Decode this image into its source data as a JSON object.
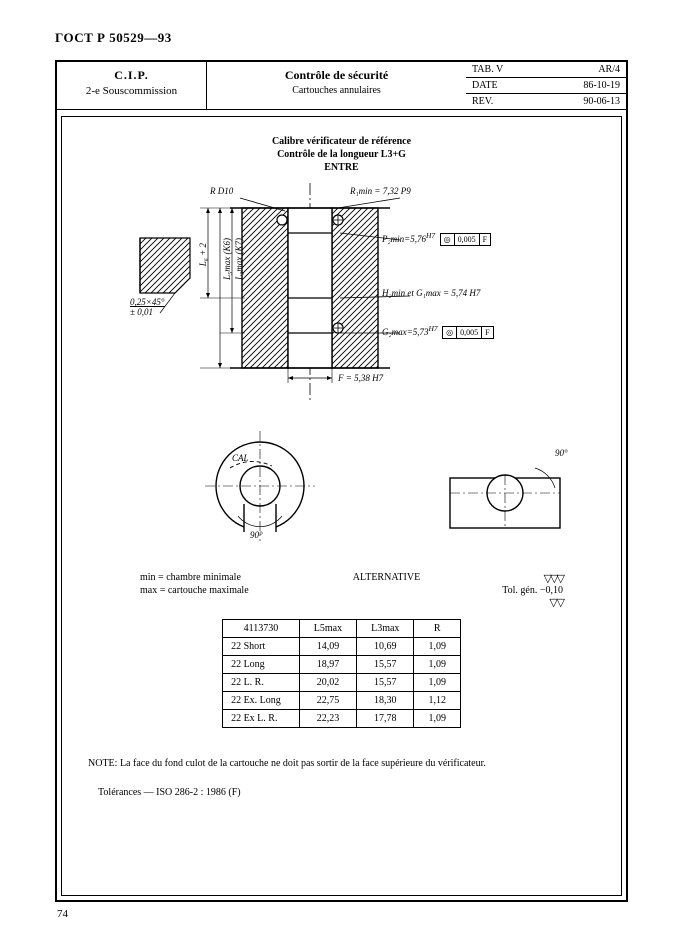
{
  "doc_header": "ГОСТ Р 50529—93",
  "titleblock": {
    "left": {
      "cip": "C.I.P.",
      "sub": "2-e Souscommission"
    },
    "mid": {
      "title": "Contrôle de sécurité",
      "subtitle": "Cartouches annulaires"
    },
    "right": {
      "rows": [
        {
          "k": "TAB. V",
          "v": "AR/4"
        },
        {
          "k": "DATE",
          "v": "86-10-19"
        },
        {
          "k": "REV.",
          "v": "90-06-13"
        }
      ]
    }
  },
  "figure": {
    "caption_l1": "Calibre vérificateur de référence",
    "caption_l2": "Contrôle de la longueur L3+G",
    "caption_l3": "ENTRE",
    "labels": {
      "r_d10": "R D10",
      "r1min": "R₁min = 7,32 P9",
      "pmin": "P₂min=5,76",
      "pmin_sup": "H7",
      "h2": "H₂min et G₁max = 5,74  H7",
      "g2max": "G₂max=5,73",
      "g2max_sup": "H7",
      "fval": "F = 5,38  H7",
      "chamfer_l1": "0,25×45°",
      "chamfer_l2": "± 0,01",
      "l6": "L₆ + 2",
      "l5": "L₅max (K6)",
      "l3": "L₃max (K7)",
      "tol_conc": "0,005",
      "tol_datum": "F",
      "cal": "CAL",
      "ninety": "90°"
    }
  },
  "legend": {
    "min": "min = chambre minimale",
    "max": "max = cartouche maximale",
    "alt": "ALTERNATIVE",
    "tolgen": "Tol. gén. −0,10"
  },
  "table": {
    "headers": [
      "4113730",
      "L5max",
      "L3max",
      "R"
    ],
    "rows": [
      [
        "22 Short",
        "14,09",
        "10,69",
        "1,09"
      ],
      [
        "22 Long",
        "18,97",
        "15,57",
        "1,09"
      ],
      [
        "22 L. R.",
        "20,02",
        "15,57",
        "1,09"
      ],
      [
        "22 Ex. Long",
        "22,75",
        "18,30",
        "1,12"
      ],
      [
        "22 Ex L. R.",
        "22,23",
        "17,78",
        "1,09"
      ]
    ]
  },
  "note": "NOTE: La face du fond culot de la cartouche ne doit pas sortir  de la face supérieure  du vérificateur.",
  "tol_ref": "Tolérances — ISO 286-2 : 1986 (F)",
  "page_num": "74",
  "colors": {
    "ink": "#000000",
    "paper": "#ffffff"
  }
}
